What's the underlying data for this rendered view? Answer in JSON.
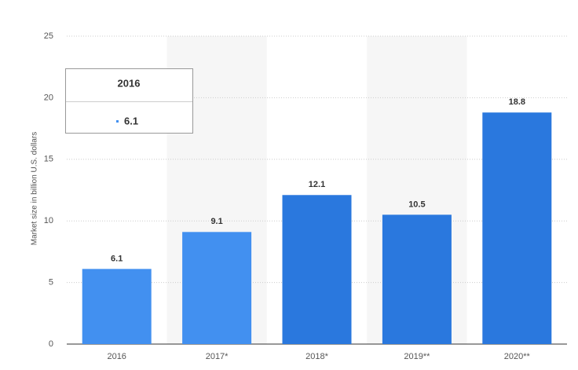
{
  "chart_data": {
    "type": "bar",
    "y_label": "Market size in billion U.S. dollars",
    "categories": [
      "2016",
      "2017*",
      "2018*",
      "2019**",
      "2020**"
    ],
    "values": [
      6.1,
      9.1,
      12.1,
      10.5,
      18.8
    ],
    "colors": [
      "#4290f0",
      "#4290f0",
      "#2a78de",
      "#2a78de",
      "#2a78de"
    ],
    "ylim": [
      0,
      25
    ],
    "yticks": [
      0,
      5,
      10,
      15,
      20,
      25
    ],
    "grid": true,
    "tooltip": {
      "category": 0
    }
  }
}
